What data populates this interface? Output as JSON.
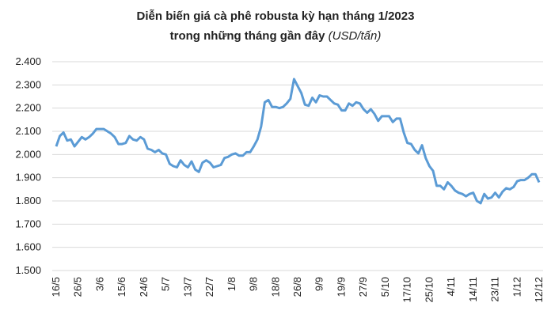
{
  "chart_data": {
    "type": "line",
    "title": "Diễn biến giá cà phê robusta kỳ hạn tháng 1/2023",
    "subtitle": "trong những tháng gần đây",
    "unit": "(USD/tấn)",
    "categories": [
      "16/5",
      null,
      null,
      null,
      null,
      null,
      "26/5",
      null,
      null,
      null,
      null,
      null,
      "3/6",
      null,
      null,
      null,
      null,
      null,
      "15/6",
      null,
      null,
      null,
      null,
      null,
      "24/6",
      null,
      null,
      null,
      null,
      null,
      "5/7",
      null,
      null,
      null,
      null,
      null,
      "13/7",
      null,
      null,
      null,
      null,
      null,
      "22/7",
      null,
      null,
      null,
      null,
      null,
      "1/8",
      null,
      null,
      null,
      null,
      null,
      "9/8",
      null,
      null,
      null,
      null,
      null,
      "18/8",
      null,
      null,
      null,
      null,
      null,
      "26/8",
      null,
      null,
      null,
      null,
      null,
      "9/9",
      null,
      null,
      null,
      null,
      null,
      "19/9",
      null,
      null,
      null,
      null,
      null,
      "27/9",
      null,
      null,
      null,
      null,
      null,
      "5/10",
      null,
      null,
      null,
      null,
      null,
      "17/10",
      null,
      null,
      null,
      null,
      null,
      "25/10",
      null,
      null,
      null,
      null,
      null,
      "4/11",
      null,
      null,
      null,
      null,
      null,
      "14/11",
      null,
      null,
      null,
      null,
      null,
      "23/11",
      null,
      null,
      null,
      null,
      null,
      "1/12",
      null,
      null,
      null,
      null,
      null,
      "12/12"
    ],
    "series": [
      {
        "color": "#5b9bd5",
        "values": [
          2035,
          2080,
          2095,
          2060,
          2065,
          2035,
          2055,
          2075,
          2065,
          2075,
          2090,
          2110,
          2110,
          2110,
          2100,
          2090,
          2075,
          2045,
          2045,
          2050,
          2080,
          2065,
          2060,
          2075,
          2065,
          2025,
          2020,
          2010,
          2020,
          2005,
          2000,
          1960,
          1950,
          1945,
          1975,
          1955,
          1945,
          1970,
          1935,
          1925,
          1965,
          1975,
          1965,
          1945,
          1950,
          1955,
          1985,
          1990,
          2000,
          2005,
          1995,
          1995,
          2010,
          2010,
          2035,
          2065,
          2120,
          2225,
          2235,
          2205,
          2205,
          2200,
          2205,
          2220,
          2240,
          2325,
          2295,
          2265,
          2215,
          2210,
          2245,
          2225,
          2255,
          2250,
          2250,
          2235,
          2220,
          2215,
          2190,
          2190,
          2220,
          2210,
          2225,
          2220,
          2195,
          2180,
          2195,
          2175,
          2145,
          2165,
          2165,
          2165,
          2140,
          2155,
          2155,
          2095,
          2050,
          2045,
          2020,
          2005,
          2040,
          1985,
          1950,
          1930,
          1865,
          1865,
          1850,
          1880,
          1865,
          1845,
          1835,
          1830,
          1820,
          1830,
          1835,
          1800,
          1790,
          1830,
          1810,
          1815,
          1835,
          1815,
          1840,
          1855,
          1850,
          1860,
          1885,
          1890,
          1890,
          1900,
          1915,
          1915,
          1880
        ]
      }
    ],
    "ylim": [
      1500,
      2400
    ],
    "yticks": [
      {
        "value": 1500,
        "label": "1.500"
      },
      {
        "value": 1600,
        "label": "1.600"
      },
      {
        "value": 1700,
        "label": "1.700"
      },
      {
        "value": 1800,
        "label": "1.800"
      },
      {
        "value": 1900,
        "label": "1.900"
      },
      {
        "value": 2000,
        "label": "2.000"
      },
      {
        "value": 2100,
        "label": "2.100"
      },
      {
        "value": 2200,
        "label": "2.200"
      },
      {
        "value": 2300,
        "label": "2.300"
      },
      {
        "value": 2400,
        "label": "2.400"
      }
    ],
    "grid": true
  }
}
